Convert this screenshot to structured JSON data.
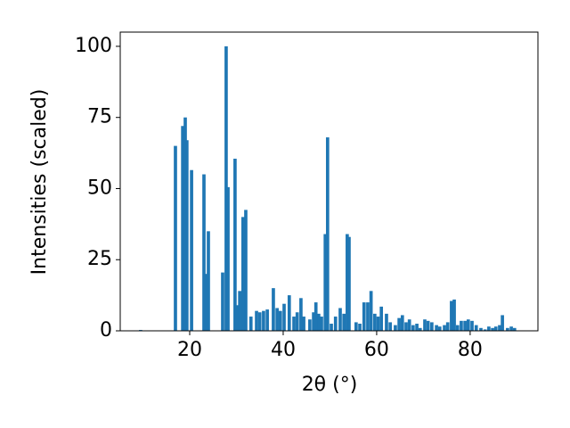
{
  "chart_data": {
    "type": "bar",
    "xlabel": "2θ (°)",
    "ylabel": "Intensities (scaled)",
    "color": "#1f77b4",
    "x": [
      9.5,
      16.95,
      18.5,
      19.05,
      19.4,
      20.4,
      23.05,
      23.4,
      24.0,
      27.05,
      27.8,
      28.2,
      29.7,
      30.1,
      30.7,
      31.4,
      32.0,
      33.1,
      34.3,
      35.0,
      35.8,
      36.6,
      37.9,
      38.7,
      39.4,
      40.2,
      41.3,
      42.3,
      43.0,
      43.8,
      44.4,
      45.7,
      46.5,
      47.0,
      47.6,
      48.2,
      49.0,
      49.5,
      50.3,
      51.2,
      52.2,
      53.0,
      53.7,
      54.1,
      55.6,
      56.4,
      57.3,
      58.1,
      58.8,
      59.6,
      60.3,
      61.0,
      62.1,
      62.9,
      64.0,
      64.8,
      65.5,
      66.3,
      67.0,
      67.8,
      68.6,
      69.3,
      70.3,
      71.0,
      71.8,
      72.8,
      73.5,
      74.5,
      75.2,
      76.0,
      76.6,
      77.3,
      78.1,
      78.9,
      79.6,
      80.4,
      81.3,
      82.3,
      83.2,
      84.0,
      84.8,
      85.5,
      86.3,
      86.9,
      88.0,
      88.8,
      89.5
    ],
    "values": [
      0.3,
      65,
      72,
      75,
      67,
      56.5,
      55,
      20,
      35,
      20.5,
      100,
      50.5,
      60.5,
      9,
      14,
      40,
      42.5,
      5,
      7,
      6.5,
      7,
      7.5,
      15,
      8,
      7,
      9.5,
      12.5,
      5,
      6.5,
      11.5,
      5,
      4,
      6.5,
      10,
      6,
      5,
      34,
      68,
      2.5,
      5,
      8,
      6,
      34,
      33,
      3,
      2.5,
      10,
      10,
      14,
      6,
      5,
      8.5,
      6,
      3,
      2,
      4.5,
      5.5,
      3,
      4,
      2,
      2.5,
      1,
      4,
      3.5,
      3,
      2,
      1.5,
      2,
      3,
      10.5,
      11,
      2,
      3.5,
      3.5,
      4,
      3.5,
      2,
      1,
      0.5,
      1.5,
      1,
      1.5,
      2,
      5.5,
      1,
      1.5,
      1
    ],
    "xlim": [
      5.14,
      94.5
    ],
    "xticks": [
      20,
      40,
      60,
      80
    ],
    "ylim": [
      0,
      105
    ],
    "yticks": [
      0,
      25,
      50,
      75,
      100
    ]
  }
}
